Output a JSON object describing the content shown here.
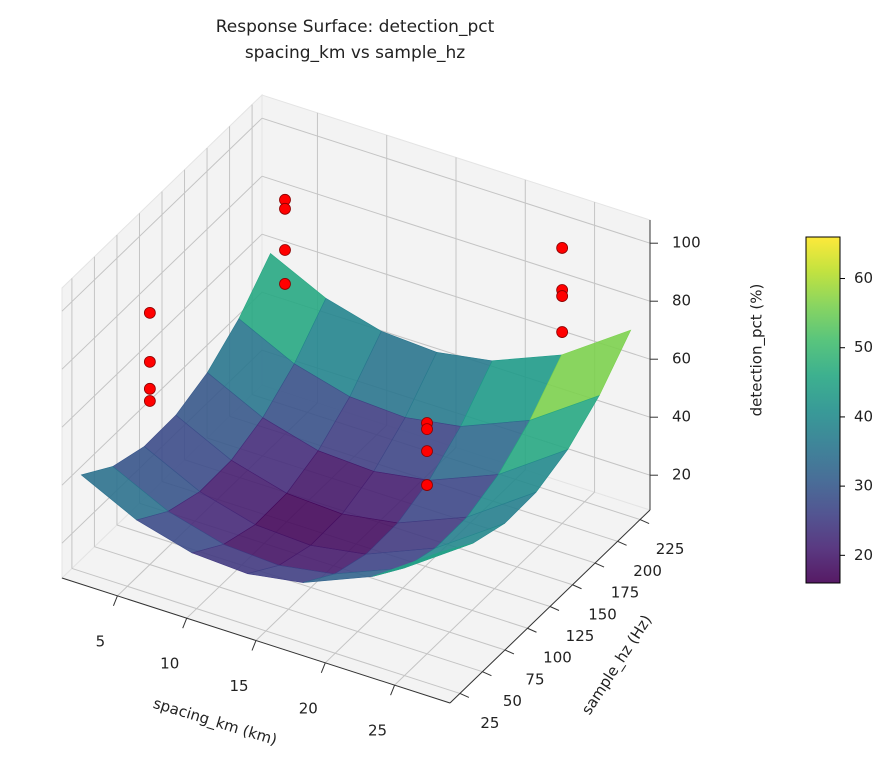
{
  "chart_data": {
    "type": "surface3d",
    "title": "Response Surface: detection_pct",
    "subtitle": "spacing_km vs sample_hz",
    "x_label": "spacing_km (km)",
    "y_label": "sample_hz (Hz)",
    "z_label": "detection_pct (%)",
    "xlim": [
      1,
      29
    ],
    "ylim": [
      14,
      236
    ],
    "zlim": [
      8,
      108
    ],
    "xticks": [
      5,
      10,
      15,
      20,
      25
    ],
    "yticks": [
      25,
      50,
      75,
      100,
      125,
      150,
      175,
      200,
      225
    ],
    "zticks": [
      20,
      40,
      60,
      80,
      100
    ],
    "colormap": "viridis",
    "clim": [
      16,
      66
    ],
    "cticks": [
      20,
      30,
      40,
      50,
      60
    ],
    "grid": true,
    "surface": {
      "x": [
        2,
        6,
        10,
        14,
        18,
        23,
        28
      ],
      "y": [
        20,
        55,
        90,
        125,
        160,
        195,
        230
      ],
      "z": [
        [
          43.3,
          33.9,
          28.7,
          27.7,
          30.8,
          40.6,
          56.8
        ],
        [
          35.7,
          26.4,
          21.2,
          20.1,
          23.3,
          33.0,
          49.3
        ],
        [
          32.1,
          22.7,
          17.5,
          16.5,
          19.6,
          29.4,
          45.6
        ],
        [
          32.4,
          23.0,
          17.8,
          16.8,
          19.9,
          29.6,
          45.9
        ],
        [
          36.6,
          27.2,
          22.0,
          21.0,
          24.1,
          33.8,
          50.1
        ],
        [
          44.7,
          35.3,
          30.1,
          29.1,
          32.2,
          42.0,
          58.2
        ],
        [
          56.7,
          47.4,
          42.2,
          41.1,
          44.3,
          54.0,
          70.3
        ]
      ]
    },
    "points": {
      "color": "#ff0000",
      "x": [
        5,
        5,
        5,
        5,
        5,
        5,
        5,
        5,
        25,
        25,
        25,
        25,
        25,
        25,
        25,
        25
      ],
      "y": [
        50,
        50,
        50,
        50,
        200,
        200,
        200,
        200,
        200,
        200,
        200,
        200,
        50,
        50,
        50,
        50
      ],
      "z": [
        94.8,
        77.9,
        68.6,
        64.4,
        88.8,
        85.7,
        71.5,
        59.8,
        103,
        88.5,
        86.4,
        74.0,
        87.6,
        85.5,
        77.9,
        66.2
      ]
    }
  }
}
